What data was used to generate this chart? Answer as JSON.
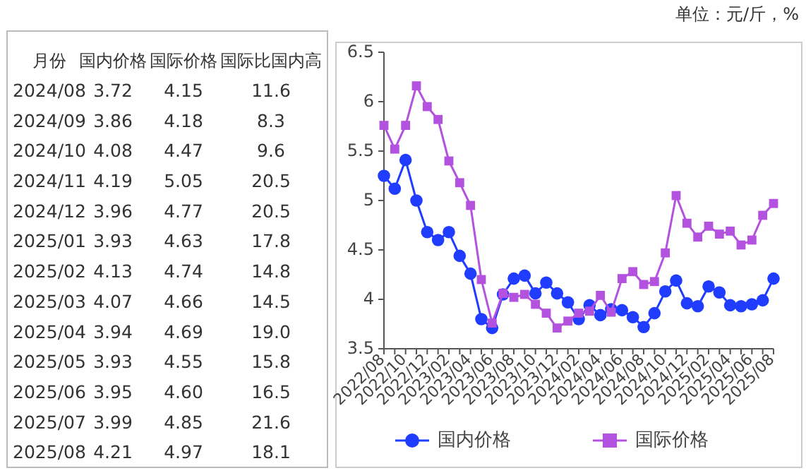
{
  "chart_data": [
    {
      "type": "other",
      "annotations": [
        "月份",
        "国内价格",
        "国际价格",
        "国际比国内高",
        "2024/08",
        "3.72",
        "4.15",
        "11.6",
        "2024/09",
        "3.86",
        "4.18",
        "8.3",
        "2024/10",
        "4.08",
        "4.47",
        "9.6",
        "2024/11",
        "4.19",
        "5.05",
        "20.5",
        "2024/12",
        "3.96",
        "4.77",
        "20.5",
        "2025/01",
        "3.93",
        "4.63",
        "17.8",
        "2025/02",
        "4.13",
        "4.74",
        "14.8",
        "2025/03",
        "4.07",
        "4.66",
        "14.5",
        "2025/04",
        "3.94",
        "4.69",
        "19.0",
        "2025/05",
        "3.93",
        "4.55",
        "15.8",
        "2025/06",
        "3.95",
        "4.60",
        "16.5",
        "2025/07",
        "3.99",
        "4.85",
        "21.6",
        "2025/08",
        "4.21",
        "4.97",
        "18.1"
      ]
    },
    {
      "type": "line",
      "annotations": [
        "单位：元/斤，%"
      ],
      "categories": [
        "2022/08",
        null,
        "2022/10",
        null,
        "2022/12",
        null,
        "2023/02",
        null,
        "2023/04",
        null,
        "2023/06",
        null,
        "2023/08",
        null,
        "2023/10",
        null,
        "2023/12",
        null,
        "2024/02",
        null,
        "2024/04",
        null,
        "2024/06",
        null,
        "2024/08",
        null,
        "2024/10",
        null,
        "2024/12",
        null,
        "2025/02",
        null,
        "2025/04",
        null,
        "2025/06",
        null,
        "2025/08"
      ],
      "ylim": [
        3.5,
        6.5
      ],
      "yticks": [
        3.5,
        4,
        4.5,
        5,
        5.5,
        6,
        6.5
      ],
      "legend": "bottom",
      "series": [
        {
          "name": "国内价格",
          "color": "#1f3cff",
          "marker": "circle",
          "values": [
            5.25,
            5.12,
            5.41,
            5.0,
            4.68,
            4.6,
            4.68,
            4.44,
            4.26,
            3.8,
            3.71,
            4.05,
            4.21,
            4.24,
            4.06,
            4.17,
            4.06,
            3.97,
            3.8,
            3.94,
            3.84,
            3.9,
            3.89,
            3.82,
            3.72,
            3.86,
            4.08,
            4.19,
            3.96,
            3.93,
            4.13,
            4.07,
            3.94,
            3.93,
            3.95,
            3.99,
            4.21
          ]
        },
        {
          "name": "国际价格",
          "color": "#b452e0",
          "marker": "square",
          "values": [
            5.76,
            5.52,
            5.76,
            6.16,
            5.95,
            5.82,
            5.4,
            5.18,
            4.95,
            4.2,
            3.76,
            4.06,
            4.02,
            4.05,
            3.95,
            3.86,
            3.71,
            3.78,
            3.86,
            3.88,
            4.04,
            3.87,
            4.21,
            4.28,
            4.15,
            4.18,
            4.47,
            5.05,
            4.77,
            4.63,
            4.74,
            4.66,
            4.69,
            4.55,
            4.6,
            4.85,
            4.97
          ]
        }
      ]
    }
  ]
}
